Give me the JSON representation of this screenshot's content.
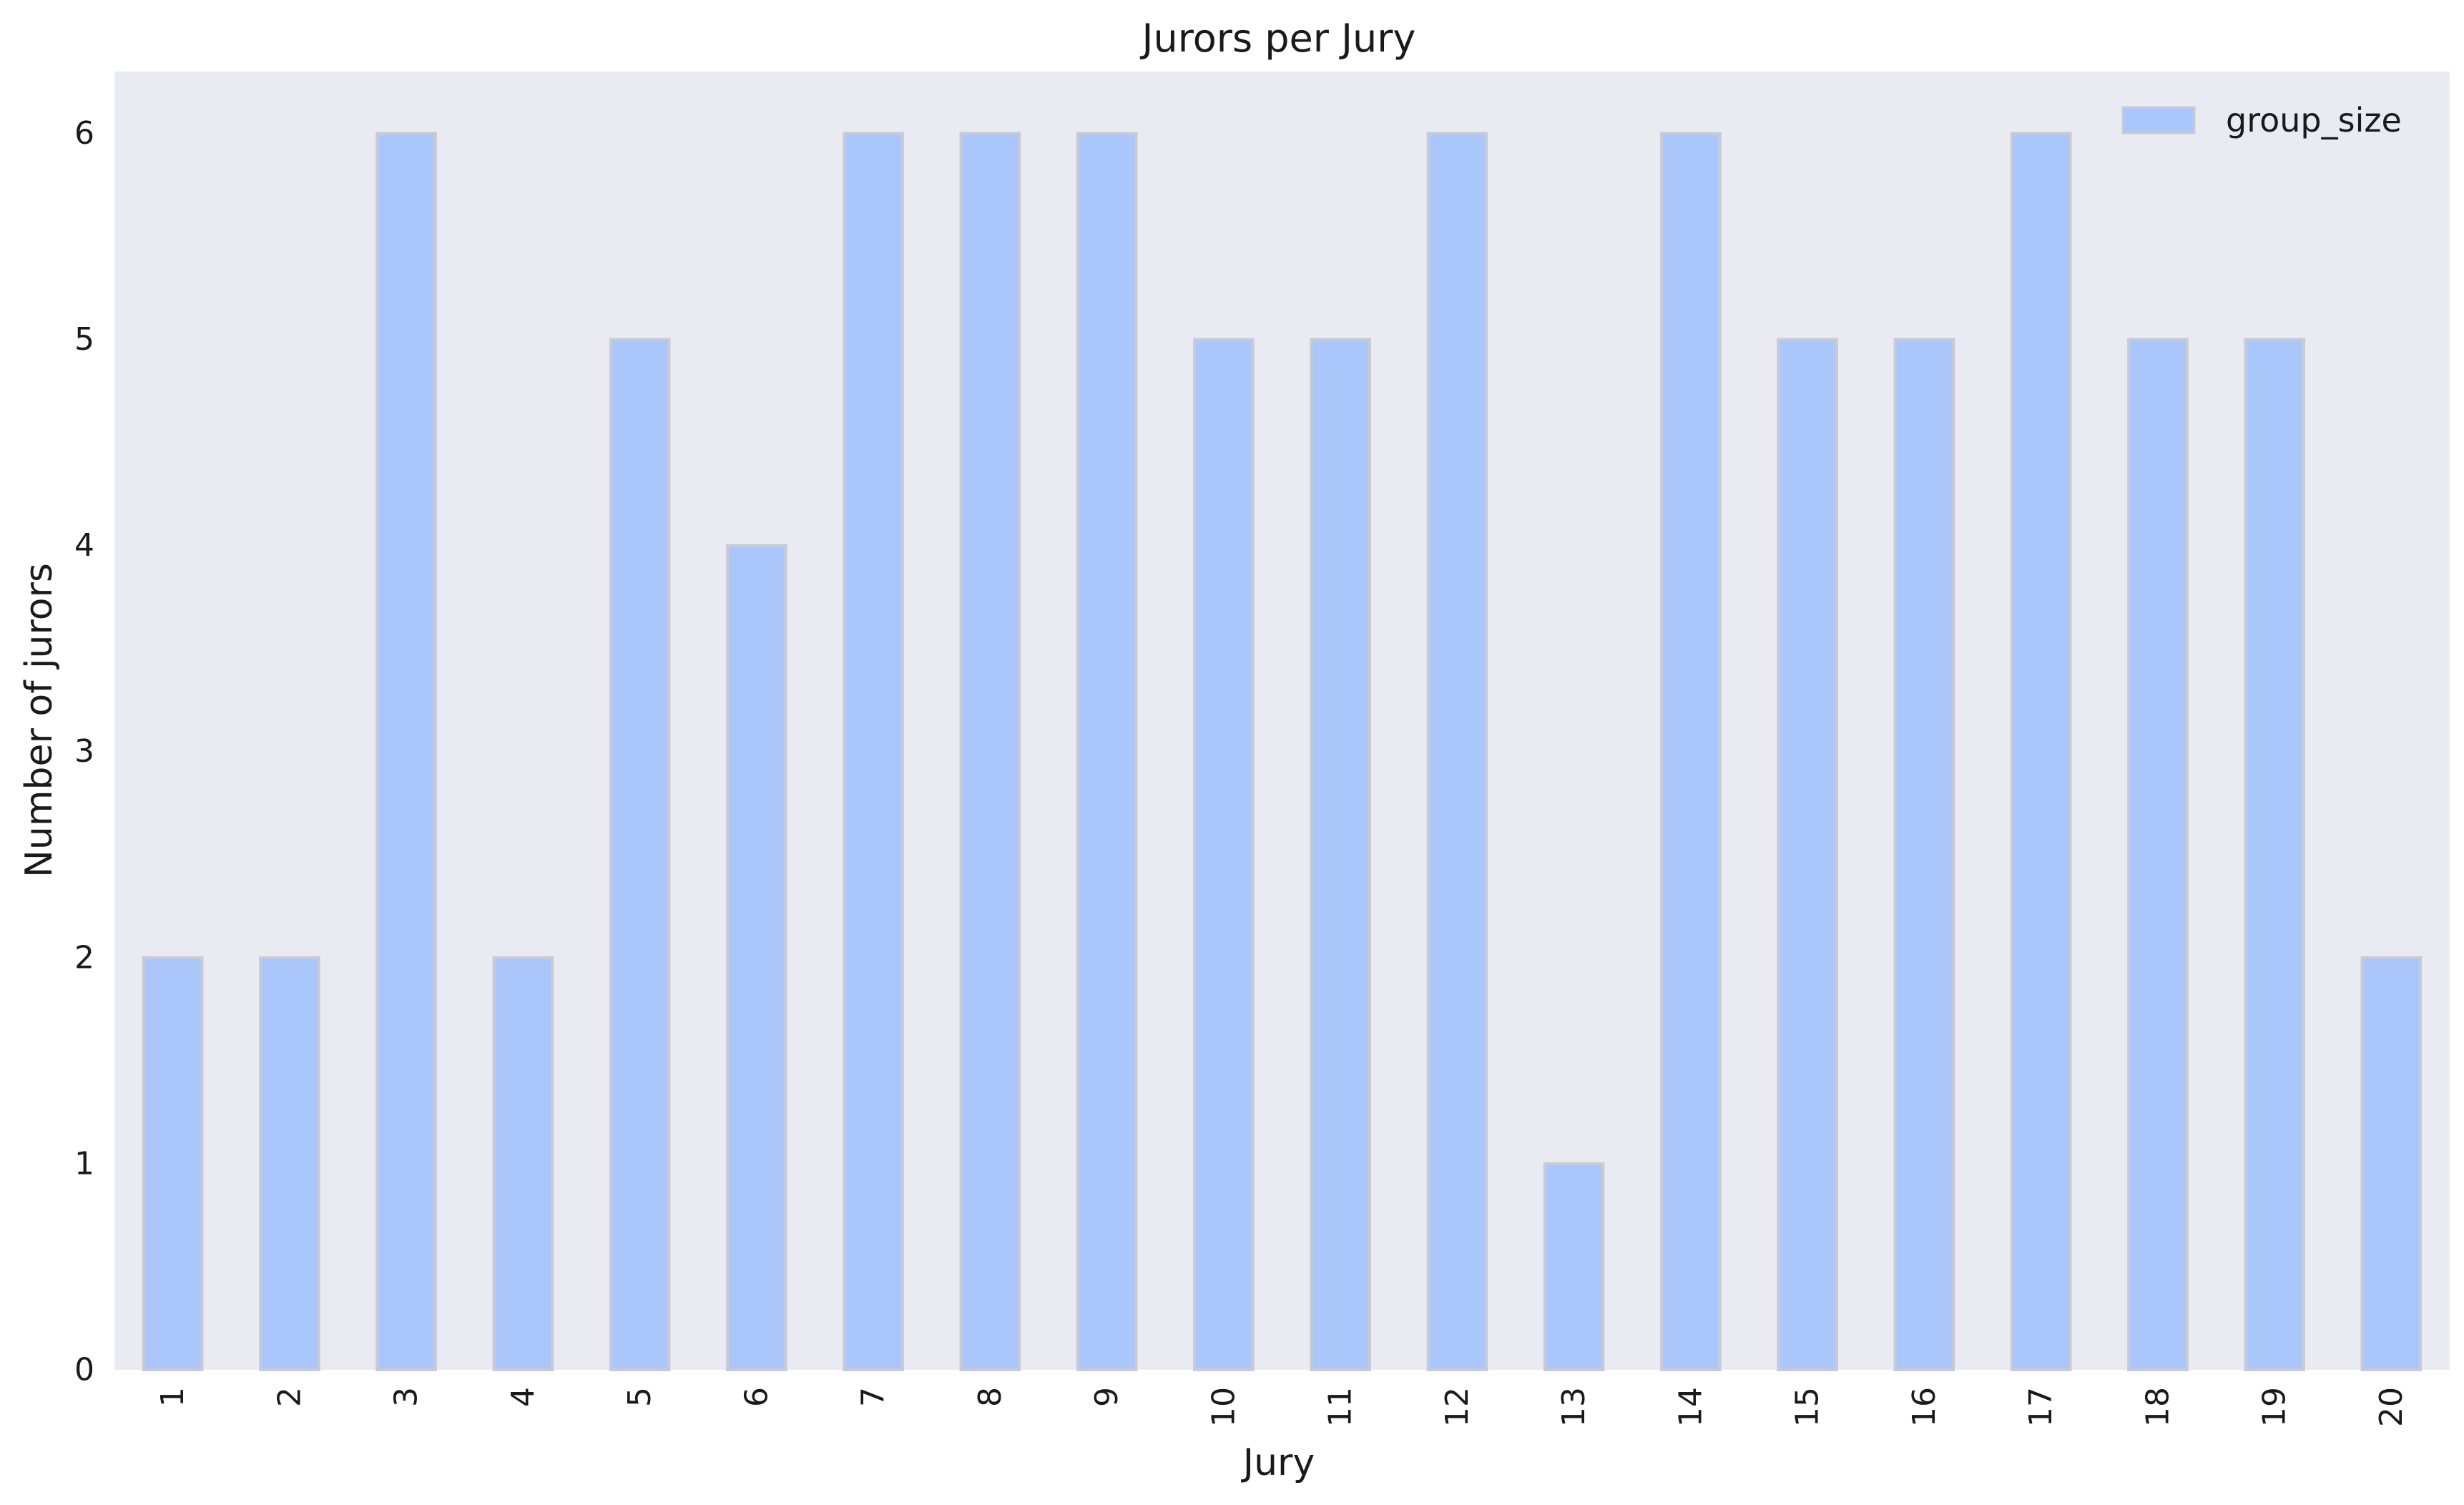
{
  "chart_data": {
    "type": "bar",
    "title": "Jurors per Jury",
    "xlabel": "Jury",
    "ylabel": "Number of jurors",
    "categories": [
      "1",
      "2",
      "3",
      "4",
      "5",
      "6",
      "7",
      "8",
      "9",
      "10",
      "11",
      "12",
      "13",
      "14",
      "15",
      "16",
      "17",
      "18",
      "19",
      "20"
    ],
    "series": [
      {
        "name": "group_size",
        "values": [
          2,
          2,
          6,
          2,
          5,
          4,
          6,
          6,
          6,
          5,
          5,
          6,
          1,
          6,
          5,
          5,
          6,
          5,
          5,
          2
        ]
      }
    ],
    "ylim": [
      0,
      6.3
    ],
    "yticks": [
      0,
      1,
      2,
      3,
      4,
      5,
      6
    ],
    "grid": false,
    "legend_position": "top-right",
    "colors": {
      "bar_fill": "#aac6fa",
      "bar_edge": "#c8cbd6",
      "plot_background": "#eaeaf2"
    }
  }
}
